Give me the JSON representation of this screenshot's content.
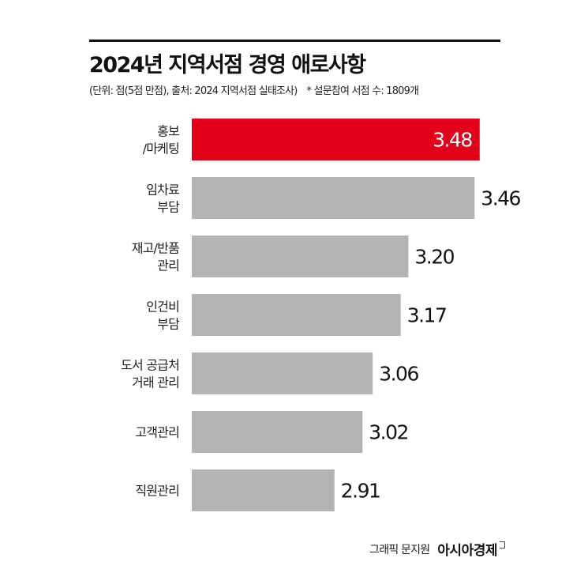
{
  "chart_data": {
    "type": "bar",
    "orientation": "horizontal",
    "title": "2024년 지역서점 경영 애로사항",
    "subtitle": "(단위: 점(5점 만점), 출처: 2024 지역서점 실태조사)",
    "note": "* 설문참여 서점 수: 1809개",
    "categories": [
      [
        "홍보",
        "/마케팅"
      ],
      [
        "임차료",
        "부담"
      ],
      [
        "재고/반품",
        "관리"
      ],
      [
        "인건비",
        "부담"
      ],
      [
        "도서 공급처",
        "거래 관리"
      ],
      [
        "고객관리"
      ],
      [
        "직원관리"
      ]
    ],
    "values": [
      3.48,
      3.46,
      3.2,
      3.17,
      3.06,
      3.02,
      2.91
    ],
    "value_labels": [
      "3.48",
      "3.46",
      "3.20",
      "3.17",
      "3.06",
      "3.02",
      "2.91"
    ],
    "xlim": [
      2.35,
      3.5
    ],
    "grid": false,
    "colors": {
      "highlight": "#e3001b",
      "default": "#b3b3b3",
      "highlight_label": "#ffffff",
      "label": "#111111"
    }
  },
  "footer": {
    "credit": "그래픽 문지원",
    "logo": "아시아경제"
  }
}
